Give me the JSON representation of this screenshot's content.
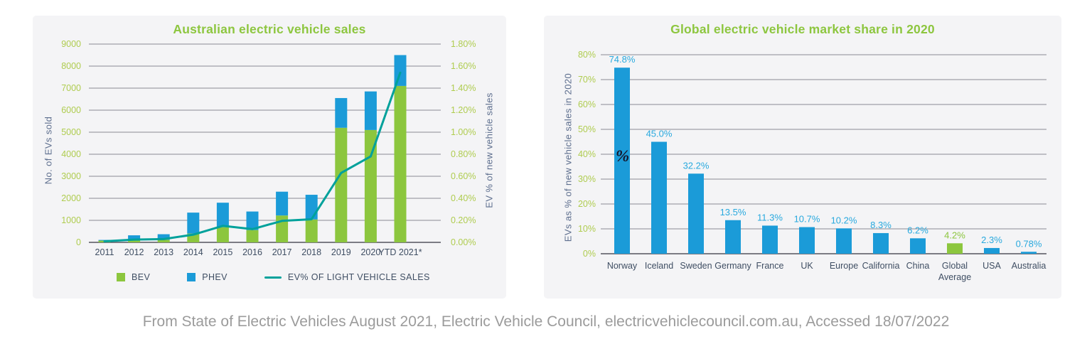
{
  "caption": "From State of Electric Vehicles August 2021, Electric Vehicle Council, electricvehiclecouncil.com.au, Accessed 18/07/2022",
  "colors": {
    "panel_bg": "#F4F4F6",
    "bev_green": "#8CC63E",
    "phev_blue": "#1B9BD8",
    "line_teal": "#00A19B",
    "tick_green": "#AFCC4F",
    "title_green": "#8DC63F",
    "x_label_slate": "#3F4E63",
    "axis_title": "#5D6E8E",
    "gridline": "#8A8A94",
    "axis_line": "#55555F",
    "value_label_blue": "#29A9DE",
    "caption_gray": "#9B9B9B",
    "artifact_dark": "#15152A"
  },
  "chart_data": [
    {
      "type": "bar",
      "subtype": "stacked-bars-with-line",
      "title": "Australian electric vehicle sales",
      "ylabel": "No. of EVs sold",
      "y2label": "EV % of new vehicle sales",
      "ylim": [
        0,
        9000
      ],
      "y2lim": [
        0,
        1.8
      ],
      "grid": true,
      "legend_position": "bottom",
      "categories": [
        "2011",
        "2012",
        "2013",
        "2014",
        "2015",
        "2016",
        "2017",
        "2018",
        "2019",
        "2020",
        "YTD 2021*"
      ],
      "series": [
        {
          "name": "BEV",
          "values": [
            80,
            90,
            120,
            400,
            690,
            560,
            1220,
            1040,
            5200,
            5100,
            7100
          ]
        },
        {
          "name": "PHEV",
          "values": [
            30,
            230,
            250,
            950,
            1110,
            840,
            1080,
            1120,
            1350,
            1750,
            1400
          ]
        }
      ],
      "line_series": {
        "name": "EV% OF LIGHT VEHICLE SALES",
        "values": [
          0.01,
          0.025,
          0.03,
          0.07,
          0.15,
          0.12,
          0.195,
          0.21,
          0.63,
          0.78,
          1.54
        ]
      },
      "yticks": [
        "0",
        "1000",
        "2000",
        "3000",
        "4000",
        "5000",
        "6000",
        "7000",
        "8000",
        "9000"
      ],
      "y2ticks": [
        "0.00%",
        "0.20%",
        "0.40%",
        "0.60%",
        "0.80%",
        "1.00%",
        "1.20%",
        "1.40%",
        "1.60%",
        "1.80%"
      ]
    },
    {
      "type": "bar",
      "title": "Global electric vehicle market share in 2020",
      "ylabel": "EVs as % of new vehicle sales in 2020",
      "ylim": [
        0,
        80
      ],
      "grid": true,
      "categories": [
        "Norway",
        "Iceland",
        "Sweden",
        "Germany",
        "France",
        "UK",
        "Europe",
        "California",
        "China",
        "Global Average",
        "USA",
        "Australia"
      ],
      "categories_display": [
        [
          "Norway"
        ],
        [
          "Iceland"
        ],
        [
          "Sweden"
        ],
        [
          "Germany"
        ],
        [
          "France"
        ],
        [
          "UK"
        ],
        [
          "Europe"
        ],
        [
          "California"
        ],
        [
          "China"
        ],
        [
          "Global",
          "Average"
        ],
        [
          "USA"
        ],
        [
          "Australia"
        ]
      ],
      "values": [
        74.8,
        45.0,
        32.2,
        13.5,
        11.3,
        10.7,
        10.2,
        8.3,
        6.2,
        4.2,
        2.3,
        0.78
      ],
      "value_labels": [
        "74.8%",
        "45.0%",
        "32.2%",
        "13.5%",
        "11.3%",
        "10.7%",
        "10.2%",
        "8.3%",
        "6.2%",
        "4.2%",
        "2.3%",
        "0.78%"
      ],
      "highlight_index": 9,
      "yticks": [
        "0%",
        "10%",
        "20%",
        "30%",
        "40%",
        "50%",
        "60%",
        "70%",
        "80%"
      ],
      "artifact_percent": "%"
    }
  ]
}
